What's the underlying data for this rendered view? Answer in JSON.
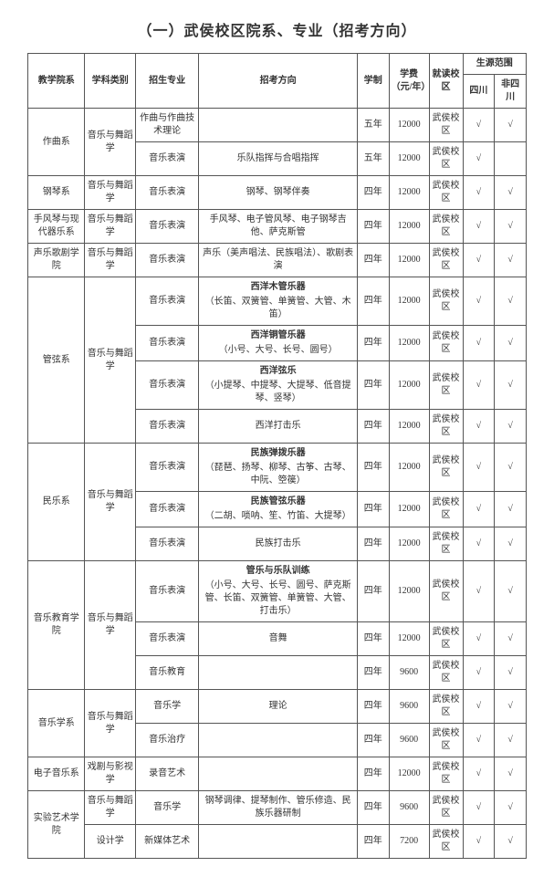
{
  "title": "（一）武侯校区院系、专业（招考方向）",
  "headers": {
    "dept": "教学院系",
    "cat": "学科类别",
    "major": "招生专业",
    "dir": "招考方向",
    "len": "学制",
    "fee": "学费（元/年）",
    "campus": "就读校区",
    "scope": "生源范围",
    "sc": "四川",
    "nsc": "非四川"
  },
  "check": "√",
  "rows": [
    {
      "dept": "作曲系",
      "deptRowspan": 2,
      "cat": "音乐与舞蹈学",
      "catRowspan": 2,
      "major": "作曲与作曲技术理论",
      "dir": "",
      "len": "五年",
      "fee": "12000",
      "campus": "武侯校区",
      "sc": true,
      "nsc": true
    },
    {
      "major": "音乐表演",
      "dir": "乐队指挥与合唱指挥",
      "len": "五年",
      "fee": "12000",
      "campus": "武侯校区",
      "sc": true,
      "nsc": false
    },
    {
      "dept": "钢琴系",
      "deptRowspan": 1,
      "cat": "音乐与舞蹈学",
      "catRowspan": 1,
      "major": "音乐表演",
      "dir": "钢琴、钢琴伴奏",
      "len": "四年",
      "fee": "12000",
      "campus": "武侯校区",
      "sc": true,
      "nsc": true
    },
    {
      "dept": "手风琴与现代器乐系",
      "deptRowspan": 1,
      "cat": "音乐与舞蹈学",
      "catRowspan": 1,
      "major": "音乐表演",
      "dir": "手风琴、电子管风琴、电子钢琴吉他、萨克斯管",
      "len": "四年",
      "fee": "12000",
      "campus": "武侯校区",
      "sc": true,
      "nsc": true
    },
    {
      "dept": "声乐歌剧学院",
      "deptRowspan": 1,
      "cat": "音乐与舞蹈学",
      "catRowspan": 1,
      "major": "音乐表演",
      "dir": "声乐（美声唱法、民族唱法）、歌剧表演",
      "len": "四年",
      "fee": "12000",
      "campus": "武侯校区",
      "sc": true,
      "nsc": true
    },
    {
      "dept": "管弦系",
      "deptRowspan": 4,
      "cat": "音乐与舞蹈学",
      "catRowspan": 4,
      "major": "音乐表演",
      "dirBold": "西洋木管乐器",
      "dirSub": "（长笛、双簧管、单簧管、大管、木笛）",
      "len": "四年",
      "fee": "12000",
      "campus": "武侯校区",
      "sc": true,
      "nsc": true
    },
    {
      "major": "音乐表演",
      "dirBold": "西洋铜管乐器",
      "dirSub": "（小号、大号、长号、圆号）",
      "len": "四年",
      "fee": "12000",
      "campus": "武侯校区",
      "sc": true,
      "nsc": true
    },
    {
      "major": "音乐表演",
      "dirBold": "西洋弦乐",
      "dirSub": "（小提琴、中提琴、大提琴、低音提琴、竖琴）",
      "len": "四年",
      "fee": "12000",
      "campus": "武侯校区",
      "sc": true,
      "nsc": true
    },
    {
      "major": "音乐表演",
      "dir": "西洋打击乐",
      "len": "四年",
      "fee": "12000",
      "campus": "武侯校区",
      "sc": true,
      "nsc": true
    },
    {
      "dept": "民乐系",
      "deptRowspan": 3,
      "cat": "音乐与舞蹈学",
      "catRowspan": 3,
      "major": "音乐表演",
      "dirBold": "民族弹拨乐器",
      "dirSub": "（琵琶、扬琴、柳琴、古筝、古琴、中阮、箜篌）",
      "len": "四年",
      "fee": "12000",
      "campus": "武侯校区",
      "sc": true,
      "nsc": true
    },
    {
      "major": "音乐表演",
      "dirBold": "民族管弦乐器",
      "dirSub": "（二胡、唢呐、笙、竹笛、大提琴）",
      "len": "四年",
      "fee": "12000",
      "campus": "武侯校区",
      "sc": true,
      "nsc": true
    },
    {
      "major": "音乐表演",
      "dir": "民族打击乐",
      "len": "四年",
      "fee": "12000",
      "campus": "武侯校区",
      "sc": true,
      "nsc": true
    },
    {
      "dept": "音乐教育学院",
      "deptRowspan": 3,
      "cat": "音乐与舞蹈学",
      "catRowspan": 3,
      "major": "音乐表演",
      "dirBold": "管乐与乐队训练",
      "dirSub": "（小号、大号、长号、圆号、萨克斯管、长笛、双簧管、单簧管、大管、打击乐）",
      "len": "四年",
      "fee": "12000",
      "campus": "武侯校区",
      "sc": true,
      "nsc": true
    },
    {
      "major": "音乐表演",
      "dir": "音舞",
      "len": "四年",
      "fee": "12000",
      "campus": "武侯校区",
      "sc": true,
      "nsc": true
    },
    {
      "major": "音乐教育",
      "dir": "",
      "len": "四年",
      "fee": "9600",
      "campus": "武侯校区",
      "sc": true,
      "nsc": true
    },
    {
      "dept": "音乐学系",
      "deptRowspan": 2,
      "cat": "音乐与舞蹈学",
      "catRowspan": 2,
      "major": "音乐学",
      "dir": "理论",
      "len": "四年",
      "fee": "9600",
      "campus": "武侯校区",
      "sc": true,
      "nsc": true
    },
    {
      "major": "音乐治疗",
      "dir": "",
      "len": "四年",
      "fee": "9600",
      "campus": "武侯校区",
      "sc": true,
      "nsc": true
    },
    {
      "dept": "电子音乐系",
      "deptRowspan": 1,
      "cat": "戏剧与影视学",
      "catRowspan": 1,
      "major": "录音艺术",
      "dir": "",
      "len": "四年",
      "fee": "12000",
      "campus": "武侯校区",
      "sc": true,
      "nsc": true
    },
    {
      "dept": "实验艺术学院",
      "deptRowspan": 2,
      "cat": "音乐与舞蹈学",
      "catRowspan": 1,
      "major": "音乐学",
      "dir": "钢琴调律、提琴制作、管乐修造、民族乐器研制",
      "len": "四年",
      "fee": "9600",
      "campus": "武侯校区",
      "sc": true,
      "nsc": true
    },
    {
      "cat": "设计学",
      "catRowspan": 1,
      "major": "新媒体艺术",
      "dir": "",
      "len": "四年",
      "fee": "7200",
      "campus": "武侯校区",
      "sc": true,
      "nsc": true
    }
  ]
}
